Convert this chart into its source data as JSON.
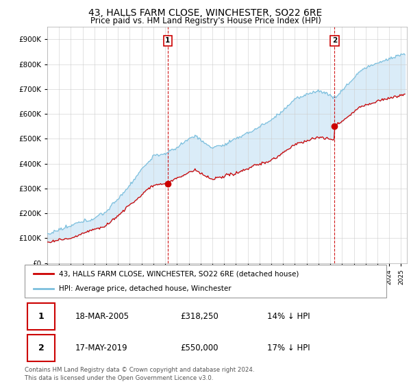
{
  "title": "43, HALLS FARM CLOSE, WINCHESTER, SO22 6RE",
  "subtitle": "Price paid vs. HM Land Registry's House Price Index (HPI)",
  "legend_entry1": "43, HALLS FARM CLOSE, WINCHESTER, SO22 6RE (detached house)",
  "legend_entry2": "HPI: Average price, detached house, Winchester",
  "sale1_date": "18-MAR-2005",
  "sale1_price": "£318,250",
  "sale1_hpi": "14% ↓ HPI",
  "sale2_date": "17-MAY-2019",
  "sale2_price": "£550,000",
  "sale2_hpi": "17% ↓ HPI",
  "footer": "Contains HM Land Registry data © Crown copyright and database right 2024.\nThis data is licensed under the Open Government Licence v3.0.",
  "hpi_color": "#7bbfdd",
  "hpi_fill_color": "#d6eaf8",
  "price_color": "#cc0000",
  "sale_line_color": "#cc0000",
  "sale1_year": 2005.21,
  "sale2_year": 2019.37,
  "sale1_price_val": 318250,
  "sale2_price_val": 550000,
  "ylim": [
    0,
    950000
  ],
  "xlim_start": 1995,
  "xlim_end": 2025.5,
  "bg_color": "#e8f4fb"
}
